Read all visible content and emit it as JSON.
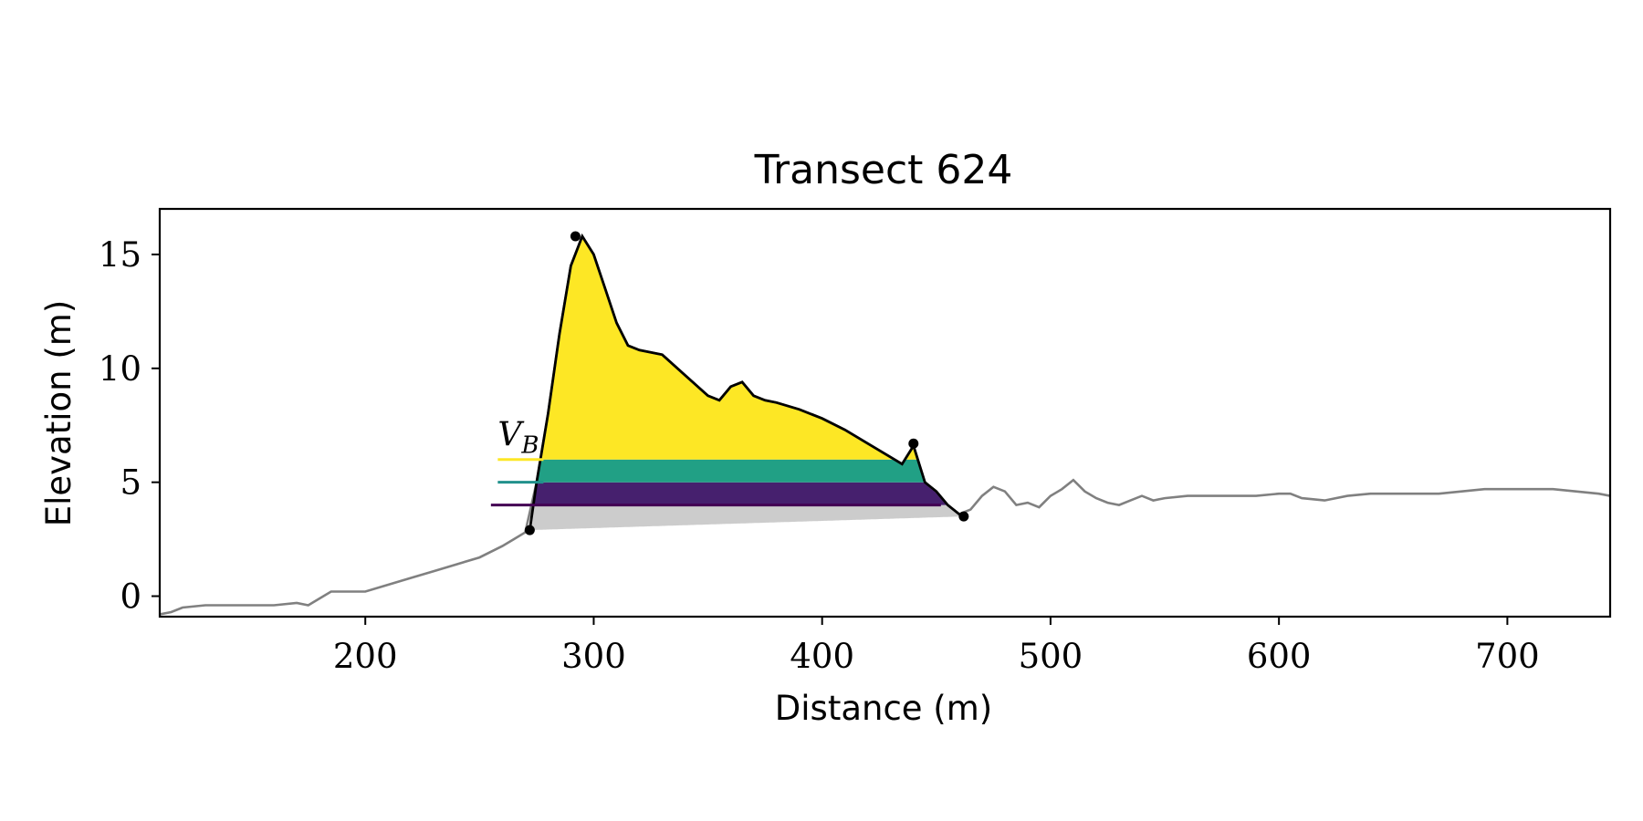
{
  "chart_data": {
    "type": "area",
    "title": "Transect 624",
    "xlabel": "Distance (m)",
    "ylabel": "Elevation (m)",
    "xlim": [
      110,
      745
    ],
    "ylim": [
      -0.9,
      17
    ],
    "xticks": [
      200,
      300,
      400,
      500,
      600,
      700
    ],
    "yticks": [
      0,
      5,
      10,
      15
    ],
    "xtick_labels": [
      "200",
      "300",
      "400",
      "500",
      "600",
      "700"
    ],
    "ytick_labels": [
      "0",
      "5",
      "10",
      "15"
    ],
    "grid": false,
    "legend": "none",
    "annotation": {
      "text": "V",
      "subscript": "B"
    },
    "colors": {
      "profile": "#808080",
      "dune_outline": "#000000",
      "base_fill": "#cccccc",
      "band_low": "#46206e",
      "band_mid": "#21a085",
      "band_high": "#fde725",
      "line_low": "#440154",
      "line_mid": "#21918c",
      "line_high": "#fde725"
    },
    "profile": {
      "x": [
        110,
        115,
        120,
        130,
        140,
        150,
        160,
        170,
        175,
        180,
        185,
        190,
        200,
        210,
        220,
        230,
        240,
        250,
        260,
        265,
        270,
        275,
        280,
        285,
        290,
        295,
        300,
        305,
        310,
        315,
        320,
        330,
        340,
        350,
        355,
        360,
        365,
        370,
        375,
        380,
        390,
        400,
        410,
        420,
        430,
        435,
        440,
        445,
        450,
        455,
        460,
        465,
        470,
        475,
        480,
        485,
        490,
        495,
        500,
        505,
        510,
        515,
        520,
        525,
        530,
        535,
        540,
        545,
        550,
        560,
        570,
        580,
        590,
        600,
        605,
        610,
        620,
        630,
        640,
        650,
        660,
        670,
        680,
        690,
        700,
        710,
        720,
        730,
        740,
        745
      ],
      "y": [
        -0.8,
        -0.7,
        -0.5,
        -0.4,
        -0.4,
        -0.4,
        -0.4,
        -0.3,
        -0.4,
        -0.1,
        0.2,
        0.2,
        0.2,
        0.5,
        0.8,
        1.1,
        1.4,
        1.7,
        2.2,
        2.5,
        2.8,
        5.0,
        8.0,
        11.5,
        14.5,
        15.8,
        15.0,
        13.5,
        12.0,
        11.0,
        10.8,
        10.6,
        9.7,
        8.8,
        8.6,
        9.2,
        9.4,
        8.8,
        8.6,
        8.5,
        8.2,
        7.8,
        7.3,
        6.7,
        6.1,
        5.8,
        6.6,
        5.0,
        4.6,
        4.0,
        3.6,
        3.8,
        4.4,
        4.8,
        4.6,
        4.0,
        4.1,
        3.9,
        4.4,
        4.7,
        5.1,
        4.6,
        4.3,
        4.1,
        4.0,
        4.2,
        4.4,
        4.2,
        4.3,
        4.4,
        4.4,
        4.4,
        4.4,
        4.5,
        4.5,
        4.3,
        4.2,
        4.4,
        4.5,
        4.5,
        4.5,
        4.5,
        4.6,
        4.7,
        4.7,
        4.7,
        4.7,
        4.6,
        4.5,
        4.4
      ]
    },
    "dune": {
      "toe": {
        "x": 272,
        "y": 2.9
      },
      "crest": {
        "x": 292,
        "y": 15.8
      },
      "secondary_crest": {
        "x": 440,
        "y": 6.7
      },
      "heel": {
        "x": 462,
        "y": 3.5
      }
    },
    "volume_bands": [
      {
        "bottom": 2.9,
        "top": 4.0,
        "color_key": "base_fill"
      },
      {
        "bottom": 4.0,
        "top": 5.0,
        "color_key": "band_low"
      },
      {
        "bottom": 5.0,
        "top": 6.0,
        "color_key": "band_mid"
      },
      {
        "bottom": 6.0,
        "top": 16.0,
        "color_key": "band_high"
      }
    ],
    "level_lines": [
      {
        "y": 4.0,
        "x_start": 255,
        "x_end": 452,
        "color_key": "line_low"
      },
      {
        "y": 5.0,
        "x_start": 258,
        "x_end": 278,
        "color_key": "line_mid"
      },
      {
        "y": 6.0,
        "x_start": 258,
        "x_end": 278,
        "color_key": "line_high"
      }
    ]
  }
}
